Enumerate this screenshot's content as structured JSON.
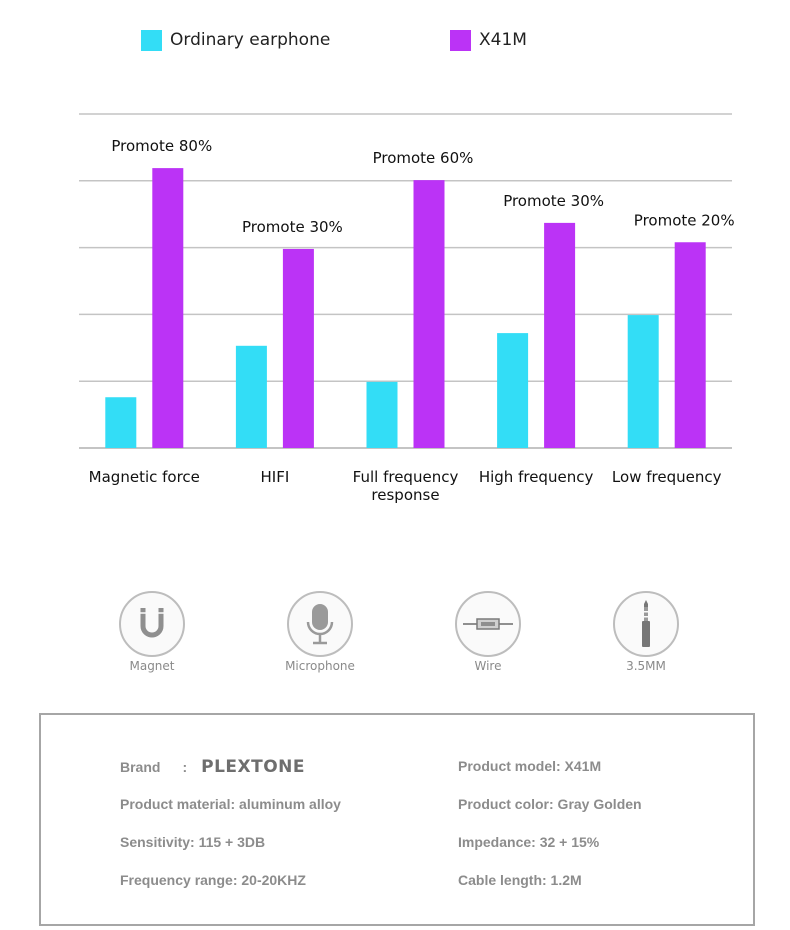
{
  "legend": [
    {
      "label": "Ordinary earphone",
      "color": "#33DDF6"
    },
    {
      "label": "X41M",
      "color": "#BB33F6"
    }
  ],
  "chart_data": {
    "type": "bar",
    "categories": [
      "Magnetic force",
      "HIFI",
      "Full frequency response",
      "High frequency",
      "Low frequency"
    ],
    "category_lines": [
      [
        "Magnetic force"
      ],
      [
        "HIFI"
      ],
      [
        "Full frequency",
        "response"
      ],
      [
        "High frequency"
      ],
      [
        "Low frequency"
      ]
    ],
    "series": [
      {
        "name": "Ordinary earphone",
        "color": "#33DDF6",
        "values": [
          0.76,
          1.53,
          0.99,
          1.72,
          1.99
        ]
      },
      {
        "name": "X41M",
        "color": "#BB33F6",
        "values": [
          4.19,
          2.98,
          4.01,
          3.37,
          3.08
        ]
      }
    ],
    "annotations": [
      "Promote 80%",
      "Promote 30%",
      "Promote 60%",
      "Promote 30%",
      "Promote 20%"
    ],
    "ylim": [
      0,
      5
    ],
    "yticks": [
      0,
      1,
      2,
      3,
      4,
      5
    ],
    "grid": true,
    "title": "",
    "xlabel": "",
    "ylabel": ""
  },
  "features": [
    {
      "label": "Magnet",
      "icon": "magnet-icon"
    },
    {
      "label": "Microphone",
      "icon": "microphone-icon"
    },
    {
      "label": "Wire",
      "icon": "wire-icon"
    },
    {
      "label": "3.5MM",
      "icon": "jack-plug-icon"
    }
  ],
  "specs": {
    "brand_label": "Brand",
    "brand_separator": ":",
    "brand_logo": "PLEXTONE",
    "material": "Product material: aluminum alloy",
    "sensitivity": "Sensitivity: 115 + 3DB",
    "frequency_range": "Frequency range: 20-20KHZ",
    "model": "Product model: X41M",
    "color": "Product color: Gray Golden",
    "impedance": "Impedance: 32 + 15%",
    "cable_length": "Cable length: 1.2M"
  }
}
